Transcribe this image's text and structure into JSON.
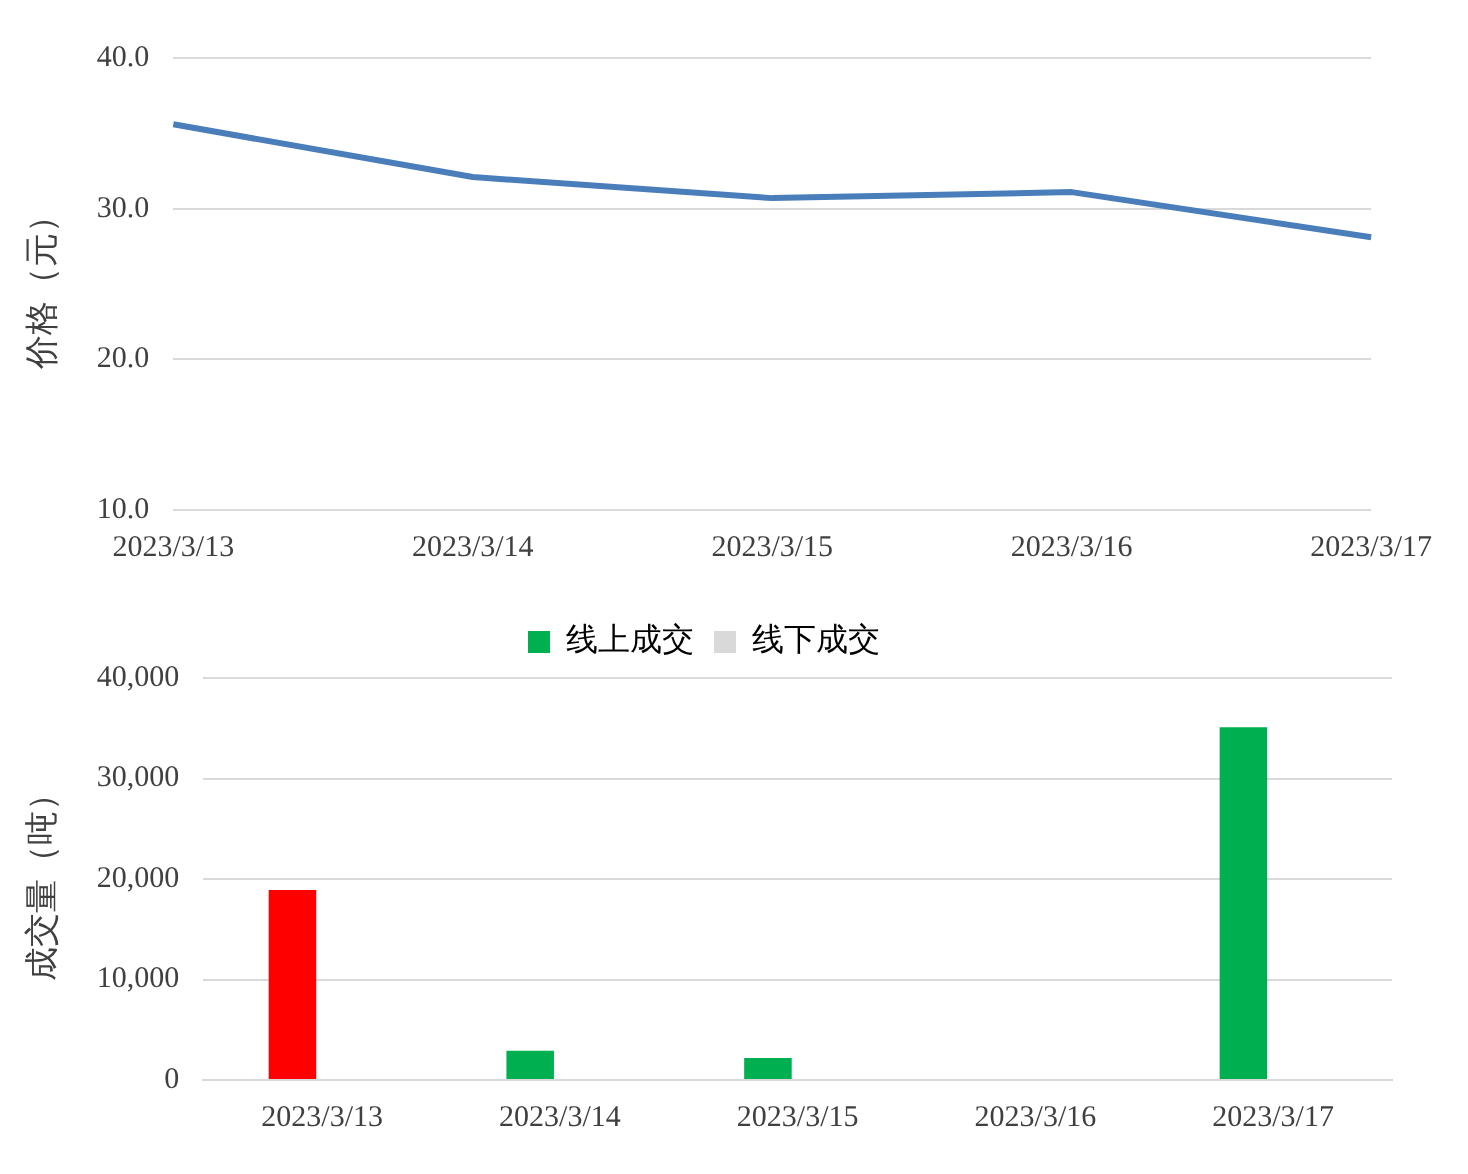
{
  "chart_data": [
    {
      "type": "line",
      "ylabel": "价格（元）",
      "categories": [
        "2023/3/13",
        "2023/3/14",
        "2023/3/15",
        "2023/3/16",
        "2023/3/17"
      ],
      "series": [
        {
          "color": "#4a7ebb",
          "values": [
            35.6,
            32.1,
            30.7,
            31.1,
            28.1
          ]
        }
      ],
      "ylim": [
        10,
        40
      ],
      "yticks": [
        {
          "value": 10,
          "label": "10.0"
        },
        {
          "value": 20,
          "label": "20.0"
        },
        {
          "value": 30,
          "label": "30.0"
        },
        {
          "value": 40,
          "label": "40.0"
        }
      ],
      "grid": "y",
      "legend": false,
      "marker": "none"
    },
    {
      "type": "bar",
      "ylabel": "成交量（吨）",
      "categories": [
        "2023/3/13",
        "2023/3/14",
        "2023/3/15",
        "2023/3/16",
        "2023/3/17"
      ],
      "series": [
        {
          "name": "线上成交",
          "color": "#00b050",
          "colors": [
            "#ff0000",
            "#00b050",
            "#00b050",
            "#00b050",
            "#00b050"
          ],
          "values": [
            18900,
            2900,
            2200,
            null,
            35100
          ]
        },
        {
          "name": "线下成交",
          "color": "#d9d9d9",
          "values": [
            null,
            null,
            null,
            null,
            null
          ]
        }
      ],
      "ylim": [
        0,
        40000
      ],
      "yticks": [
        0,
        {
          "value": 10000,
          "label": "10,000"
        },
        {
          "value": 20000,
          "label": "20,000"
        },
        {
          "value": 30000,
          "label": "30,000"
        },
        {
          "value": 40000,
          "label": "40,000"
        }
      ],
      "grid": "y",
      "legend": "top"
    }
  ]
}
